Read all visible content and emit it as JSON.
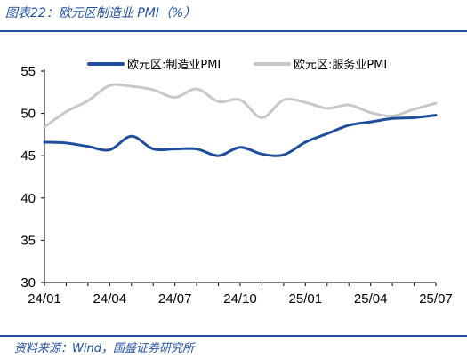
{
  "figure": {
    "title": "图表22：欧元区制造业 PMI（%）",
    "source": "资料来源：Wind，国盛证券研究所"
  },
  "chart_data": {
    "type": "line",
    "title": "",
    "xlabel": "",
    "ylabel": "",
    "ylim": [
      30,
      55
    ],
    "yticks": [
      30,
      35,
      40,
      45,
      50,
      55
    ],
    "x": [
      "24/01",
      "24/02",
      "24/03",
      "24/04",
      "24/05",
      "24/06",
      "24/07",
      "24/08",
      "24/09",
      "24/10",
      "24/11",
      "24/12",
      "25/01",
      "25/02",
      "25/03",
      "25/04",
      "25/05",
      "25/06",
      "25/07"
    ],
    "xtick_labels": [
      "24/01",
      "24/04",
      "24/07",
      "24/10",
      "25/01",
      "25/04",
      "25/07"
    ],
    "grid": false,
    "legend": "top",
    "series": [
      {
        "name": "欧元区:制造业PMI",
        "color": "#1f4e9c",
        "values": [
          46.6,
          46.5,
          46.1,
          45.7,
          47.3,
          45.8,
          45.8,
          45.8,
          45.0,
          46.0,
          45.2,
          45.1,
          46.6,
          47.6,
          48.6,
          49.0,
          49.4,
          49.5,
          49.8
        ]
      },
      {
        "name": "欧元区:服务业PMI",
        "color": "#c8c8c8",
        "values": [
          48.4,
          50.2,
          51.5,
          53.3,
          53.2,
          52.8,
          51.9,
          52.9,
          51.4,
          51.6,
          49.5,
          51.6,
          51.3,
          50.6,
          51.0,
          50.1,
          49.7,
          50.5,
          51.2
        ]
      }
    ]
  }
}
